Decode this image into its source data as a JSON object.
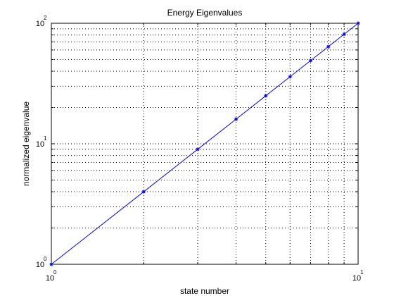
{
  "chart_data": {
    "type": "line",
    "title": "Energy Eigenvalues",
    "xlabel": "state number",
    "ylabel": "normalized eigenvalue",
    "x_scale": "log",
    "y_scale": "log",
    "xlim": [
      1,
      10
    ],
    "ylim": [
      1,
      100
    ],
    "grid": true,
    "grid_style": "dotted",
    "x_ticks": [
      {
        "base": "10",
        "exp": "0",
        "value": 1
      },
      {
        "base": "10",
        "exp": "1",
        "value": 10
      }
    ],
    "y_ticks": [
      {
        "base": "10",
        "exp": "0",
        "value": 1
      },
      {
        "base": "10",
        "exp": "1",
        "value": 10
      },
      {
        "base": "10",
        "exp": "2",
        "value": 100
      }
    ],
    "series": [
      {
        "color": "#0000ff",
        "marker": "*",
        "x": [
          1,
          2,
          3,
          4,
          5,
          6,
          7,
          8,
          9,
          10
        ],
        "y": [
          1,
          4,
          9,
          16,
          25,
          36,
          49,
          64,
          81,
          100
        ]
      }
    ]
  }
}
